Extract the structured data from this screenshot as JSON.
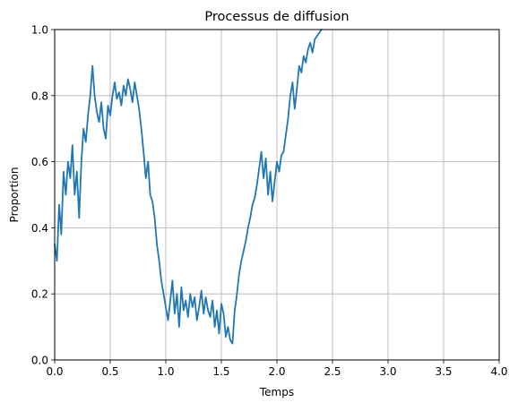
{
  "chart_data": {
    "type": "line",
    "title": "Processus de diffusion",
    "xlabel": "Temps",
    "ylabel": "Proportion",
    "xlim": [
      0.0,
      4.0
    ],
    "ylim": [
      0.0,
      1.0
    ],
    "grid": true,
    "xticks": [
      0.0,
      0.5,
      1.0,
      1.5,
      2.0,
      2.5,
      3.0,
      3.5,
      4.0
    ],
    "xtick_labels": [
      "0.0",
      "0.5",
      "1.0",
      "1.5",
      "2.0",
      "2.5",
      "3.0",
      "3.5",
      "4.0"
    ],
    "yticks": [
      0.0,
      0.2,
      0.4,
      0.6,
      0.8,
      1.0
    ],
    "ytick_labels": [
      "0.0",
      "0.2",
      "0.4",
      "0.6",
      "0.8",
      "1.0"
    ],
    "series": [
      {
        "color": "#1f77b4",
        "x": [
          0.0,
          0.02,
          0.04,
          0.06,
          0.08,
          0.1,
          0.12,
          0.14,
          0.16,
          0.18,
          0.2,
          0.22,
          0.24,
          0.26,
          0.28,
          0.3,
          0.32,
          0.34,
          0.36,
          0.38,
          0.4,
          0.42,
          0.44,
          0.46,
          0.48,
          0.5,
          0.52,
          0.54,
          0.56,
          0.58,
          0.6,
          0.62,
          0.64,
          0.66,
          0.68,
          0.7,
          0.72,
          0.74,
          0.76,
          0.78,
          0.8,
          0.82,
          0.84,
          0.86,
          0.88,
          0.9,
          0.92,
          0.94,
          0.96,
          0.98,
          1.0,
          1.02,
          1.04,
          1.06,
          1.08,
          1.1,
          1.12,
          1.14,
          1.16,
          1.18,
          1.2,
          1.22,
          1.24,
          1.26,
          1.28,
          1.3,
          1.32,
          1.34,
          1.36,
          1.38,
          1.4,
          1.42,
          1.44,
          1.46,
          1.48,
          1.5,
          1.52,
          1.54,
          1.56,
          1.58,
          1.6,
          1.62,
          1.64,
          1.66,
          1.68,
          1.7,
          1.72,
          1.74,
          1.76,
          1.78,
          1.8,
          1.82,
          1.84,
          1.86,
          1.88,
          1.9,
          1.92,
          1.94,
          1.96,
          1.98,
          2.0,
          2.02,
          2.04,
          2.06,
          2.08,
          2.1,
          2.12,
          2.14,
          2.16,
          2.18,
          2.2,
          2.22,
          2.24,
          2.26,
          2.28,
          2.3,
          2.32,
          2.34,
          2.36,
          2.38,
          2.4
        ],
        "y": [
          0.35,
          0.3,
          0.47,
          0.38,
          0.57,
          0.5,
          0.6,
          0.55,
          0.65,
          0.5,
          0.57,
          0.43,
          0.6,
          0.7,
          0.66,
          0.74,
          0.8,
          0.89,
          0.8,
          0.75,
          0.72,
          0.78,
          0.7,
          0.67,
          0.77,
          0.74,
          0.8,
          0.84,
          0.79,
          0.81,
          0.77,
          0.83,
          0.8,
          0.85,
          0.82,
          0.78,
          0.84,
          0.8,
          0.76,
          0.7,
          0.63,
          0.55,
          0.6,
          0.5,
          0.48,
          0.43,
          0.35,
          0.3,
          0.24,
          0.2,
          0.16,
          0.12,
          0.18,
          0.24,
          0.14,
          0.2,
          0.1,
          0.22,
          0.15,
          0.18,
          0.13,
          0.2,
          0.16,
          0.19,
          0.12,
          0.16,
          0.21,
          0.14,
          0.19,
          0.15,
          0.13,
          0.18,
          0.1,
          0.15,
          0.08,
          0.17,
          0.14,
          0.07,
          0.1,
          0.06,
          0.05,
          0.15,
          0.2,
          0.26,
          0.3,
          0.33,
          0.36,
          0.4,
          0.43,
          0.47,
          0.49,
          0.53,
          0.58,
          0.63,
          0.55,
          0.61,
          0.5,
          0.57,
          0.48,
          0.54,
          0.6,
          0.57,
          0.62,
          0.63,
          0.68,
          0.73,
          0.8,
          0.84,
          0.76,
          0.82,
          0.89,
          0.87,
          0.92,
          0.9,
          0.94,
          0.96,
          0.93,
          0.97,
          0.98,
          0.99,
          1.0
        ]
      }
    ]
  }
}
